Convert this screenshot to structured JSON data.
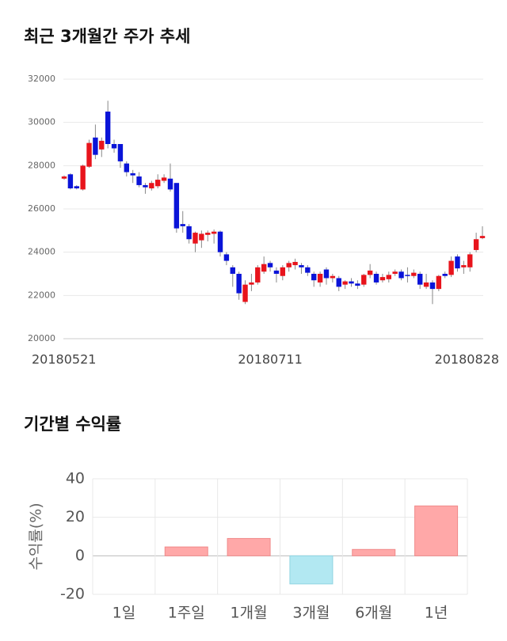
{
  "chart_data": [
    {
      "type": "candlestick",
      "title": "최근 3개월간 주가 추세",
      "categories": [
        "20180521",
        null,
        null,
        null,
        null,
        null,
        null,
        null,
        null,
        null,
        null,
        null,
        null,
        null,
        null,
        null,
        null,
        null,
        null,
        null,
        null,
        null,
        null,
        null,
        null,
        null,
        null,
        null,
        null,
        null,
        null,
        null,
        null,
        "20180711",
        null,
        null,
        null,
        null,
        null,
        null,
        null,
        null,
        null,
        null,
        null,
        null,
        null,
        null,
        null,
        null,
        null,
        null,
        null,
        null,
        null,
        null,
        null,
        null,
        null,
        null,
        null,
        null,
        null,
        null,
        null,
        null,
        null,
        "20180828"
      ],
      "open": [
        27400,
        27600,
        27050,
        26900,
        27950,
        29300,
        28750,
        30500,
        29000,
        29000,
        28100,
        27650,
        27500,
        27100,
        26950,
        27050,
        27300,
        27400,
        27200,
        25300,
        25200,
        24400,
        24550,
        24800,
        24850,
        24950,
        23900,
        23300,
        23000,
        21700,
        22500,
        22600,
        23100,
        23500,
        23150,
        22900,
        23300,
        23400,
        23400,
        23300,
        23000,
        22600,
        23200,
        22800,
        22800,
        22500,
        22650,
        22550,
        22500,
        22950,
        23000,
        22700,
        22750,
        23000,
        23100,
        22950,
        22900,
        23000,
        22400,
        22600,
        22300,
        23000,
        22950,
        23800,
        23300,
        23300,
        24100,
        24650
      ],
      "high": [
        27550,
        27650,
        27100,
        28050,
        29200,
        29900,
        29300,
        31000,
        29200,
        29000,
        28200,
        27800,
        27700,
        27200,
        27300,
        27600,
        27600,
        28100,
        27200,
        25900,
        25300,
        24950,
        25000,
        25000,
        25050,
        25000,
        24000,
        23400,
        23100,
        22700,
        23000,
        23400,
        23800,
        23600,
        23300,
        23400,
        23600,
        23700,
        23500,
        23400,
        23100,
        23100,
        23300,
        23000,
        22900,
        22700,
        22800,
        22700,
        23000,
        23450,
        23100,
        23000,
        23100,
        23200,
        23200,
        23300,
        23200,
        23100,
        23000,
        22700,
        22950,
        23100,
        23800,
        23900,
        23600,
        24000,
        24900,
        25200
      ],
      "low": [
        27350,
        26900,
        26900,
        26850,
        27900,
        28300,
        28400,
        28800,
        28600,
        27900,
        27500,
        27200,
        27000,
        26700,
        26850,
        26950,
        27200,
        26800,
        24900,
        24900,
        24400,
        24000,
        24200,
        24500,
        24400,
        23800,
        23400,
        22400,
        21800,
        21600,
        22200,
        22500,
        23000,
        23100,
        22600,
        22700,
        23100,
        23200,
        23000,
        22900,
        22400,
        22400,
        22500,
        22600,
        22200,
        22300,
        22400,
        22300,
        22400,
        22800,
        22500,
        22600,
        22600,
        22900,
        22700,
        22600,
        22800,
        22300,
        22300,
        21600,
        22200,
        22800,
        22850,
        23100,
        23000,
        23100,
        24000,
        24600
      ],
      "close": [
        27500,
        26950,
        26950,
        28000,
        29050,
        28500,
        29150,
        29000,
        28800,
        28200,
        27700,
        27550,
        27100,
        27000,
        27200,
        27350,
        27450,
        26900,
        25100,
        25200,
        24600,
        24900,
        24850,
        24900,
        24950,
        24000,
        23600,
        23000,
        22100,
        22500,
        22600,
        23300,
        23450,
        23300,
        23000,
        23300,
        23500,
        23550,
        23300,
        23050,
        22700,
        23000,
        22800,
        22900,
        22400,
        22650,
        22550,
        22450,
        22950,
        23150,
        22600,
        22850,
        22950,
        23100,
        22800,
        22900,
        23050,
        22500,
        22600,
        22300,
        22900,
        22900,
        23600,
        23250,
        23400,
        23900,
        24600,
        24750
      ],
      "up_color": "#e8141c",
      "down_color": "#0a14d8",
      "ylim": [
        20000,
        32000
      ],
      "yticks": [
        20000,
        22000,
        24000,
        26000,
        28000,
        30000,
        32000
      ],
      "grid": true
    },
    {
      "type": "bar",
      "title": "기간별 수익률",
      "ylabel": "수익률(%)",
      "categories": [
        "1일",
        "1주일",
        "1개월",
        "3개월",
        "6개월",
        "1년"
      ],
      "values": [
        0,
        4.6,
        9.0,
        -14.6,
        3.3,
        25.9
      ],
      "positive_color": "#ffa8a8",
      "negative_color": "#b2e8f2",
      "ylim": [
        -20,
        40
      ],
      "yticks": [
        -20,
        0,
        20,
        40
      ],
      "grid": true
    }
  ]
}
